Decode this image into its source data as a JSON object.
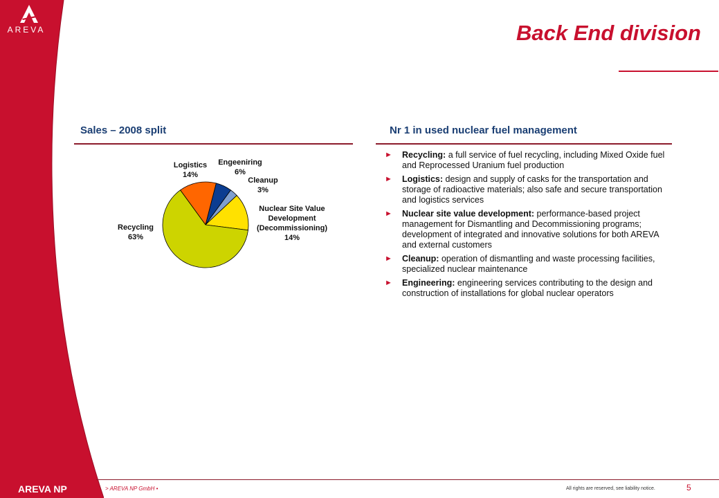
{
  "brand": {
    "logo_text": "AREVA",
    "footer_name": "AREVA NP"
  },
  "colors": {
    "brand_red": "#c8102e",
    "heading_blue": "#1a3e73",
    "rule_red": "#8b1a2a"
  },
  "slide": {
    "title": "Back End division",
    "page_number": "5"
  },
  "left_section": {
    "heading": "Sales – 2008 split"
  },
  "right_section": {
    "heading": "Nr 1 in used nuclear fuel management",
    "bullets": [
      {
        "label": "Recycling:",
        "text": " a full service of fuel recycling, including Mixed Oxide fuel and Reprocessed Uranium fuel production"
      },
      {
        "label": "Logistics:",
        "text": " design and supply of casks for the transportation and storage of radioactive materials; also safe and secure transportation and logistics services"
      },
      {
        "label": "Nuclear site value development:",
        "text": " performance-based project management for Dismantling and Decommissioning programs; development of integrated and innovative solutions for both AREVA and external customers"
      },
      {
        "label": "Cleanup:",
        "text": " operation of dismantling and waste processing facilities, specialized nuclear maintenance"
      },
      {
        "label": "Engineering:",
        "text": " engineering services contributing to the design and construction of installations for global nuclear operators"
      }
    ]
  },
  "chart_data": {
    "type": "pie",
    "slices": [
      {
        "name": "Logistics",
        "value": 14,
        "label": "14%",
        "color": "#ff6600"
      },
      {
        "name": "Engeeniring",
        "value": 6,
        "label": "6%",
        "color": "#0b3d91"
      },
      {
        "name": "Cleanup",
        "value": 3,
        "label": "3%",
        "color": "#7f9fcf"
      },
      {
        "name": "Nuclear Site Value Development (Decommissioning)",
        "name_lines": [
          "Nuclear Site Value",
          "Development",
          "(Decommissioning)"
        ],
        "value": 14,
        "label": "14%",
        "color": "#ffe100"
      },
      {
        "name": "Recycling",
        "value": 63,
        "label": "63%",
        "color": "#cdd400"
      }
    ]
  },
  "footer": {
    "left": "> AREVA NP GmbH •",
    "right": "All rights are reserved, see liability notice."
  }
}
